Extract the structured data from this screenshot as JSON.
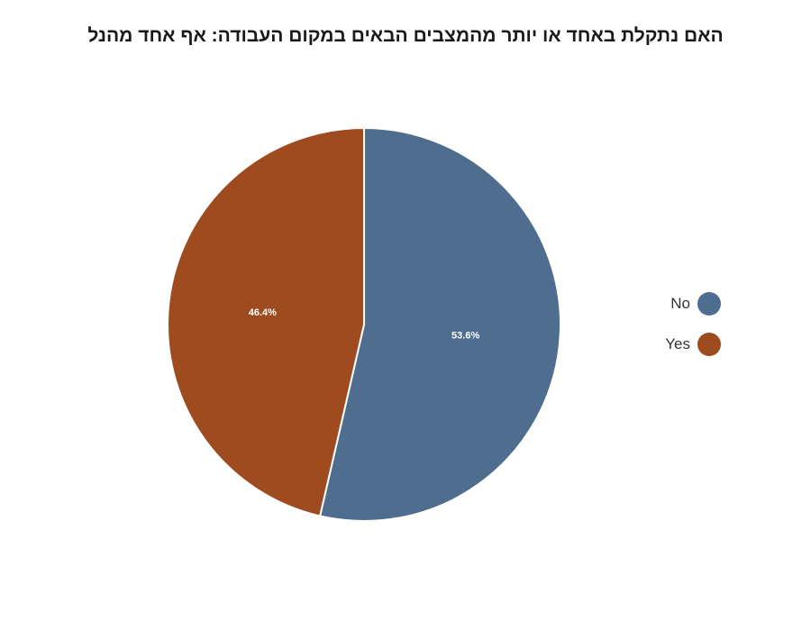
{
  "chart_data": {
    "type": "pie",
    "title": "האם נתקלת באחד או יותר מהמצבים הבאים במקום העבודה: אף אחד מהנל",
    "categories": [
      "No",
      "Yes"
    ],
    "values": [
      53.6,
      46.4
    ],
    "value_labels": [
      "53.6%",
      "46.4%"
    ],
    "colors": [
      "#4f6d8f",
      "#9e4b20"
    ],
    "legend_position": "right"
  }
}
